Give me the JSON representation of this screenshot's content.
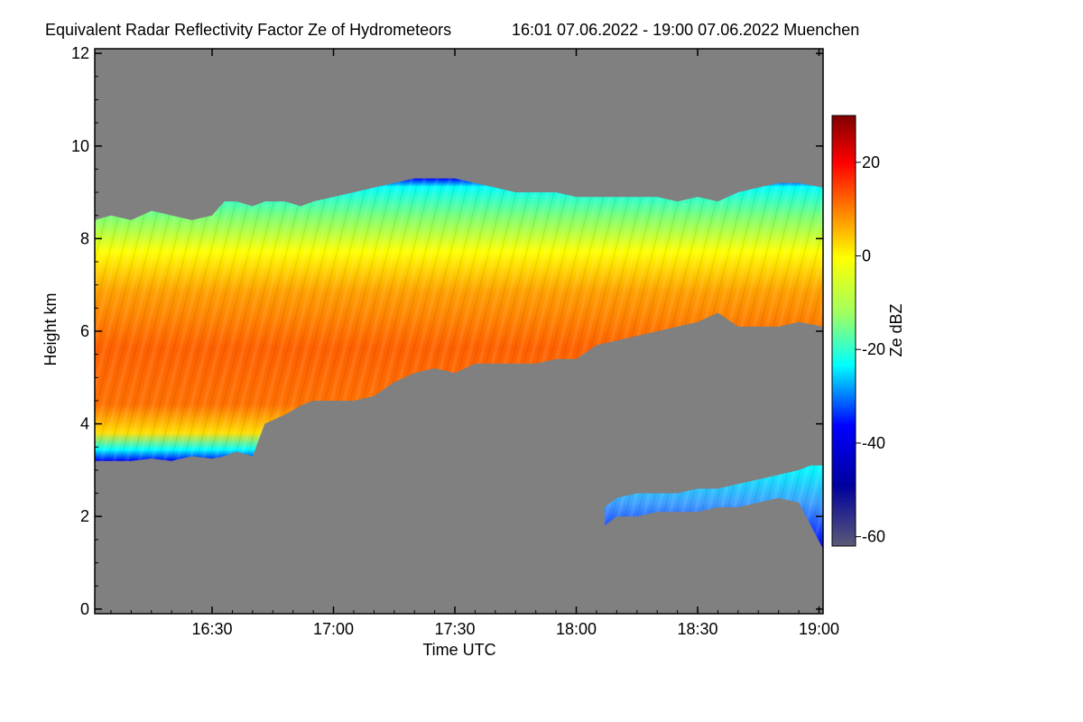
{
  "chart_data": {
    "type": "heatmap",
    "title": "Equivalent Radar Reflectivity Factor Ze of Hydrometeors",
    "subtitle": "16:01 07.06.2022 - 19:00 07.06.2022 Muenchen",
    "xlabel": "Time UTC",
    "ylabel": "Height km",
    "xlim_minutes_utc": [
      961,
      1141
    ],
    "x_ticks": [
      {
        "label": "16:30",
        "minutes": 990
      },
      {
        "label": "17:00",
        "minutes": 1020
      },
      {
        "label": "17:30",
        "minutes": 1050
      },
      {
        "label": "18:00",
        "minutes": 1080
      },
      {
        "label": "18:30",
        "minutes": 1110
      },
      {
        "label": "19:00",
        "minutes": 1140
      }
    ],
    "ylim": [
      -0.1,
      12.1
    ],
    "y_ticks": [
      0,
      2,
      4,
      6,
      8,
      10,
      12
    ],
    "colorbar": {
      "label": "Ze dBZ",
      "range": [
        -62,
        30
      ],
      "ticks": [
        -60,
        -40,
        -20,
        0,
        20
      ]
    },
    "no_echo_color": "#808080",
    "colormap": [
      "#5a5a78",
      "#00009e",
      "#0000ff",
      "#00ffff",
      "#a0ff60",
      "#ffff00",
      "#ff8000",
      "#ff0000",
      "#800000"
    ],
    "layers": [
      {
        "name": "main",
        "points": [
          {
            "t": 961,
            "top": 8.4,
            "bottom": 3.2
          },
          {
            "t": 965,
            "top": 8.5,
            "bottom": 3.2
          },
          {
            "t": 970,
            "top": 8.4,
            "bottom": 3.2
          },
          {
            "t": 975,
            "top": 8.6,
            "bottom": 3.25
          },
          {
            "t": 980,
            "top": 8.5,
            "bottom": 3.2
          },
          {
            "t": 985,
            "top": 8.4,
            "bottom": 3.3
          },
          {
            "t": 990,
            "top": 8.5,
            "bottom": 3.25
          },
          {
            "t": 993,
            "top": 8.8,
            "bottom": 3.3
          },
          {
            "t": 996,
            "top": 8.8,
            "bottom": 3.4
          },
          {
            "t": 1000,
            "top": 8.7,
            "bottom": 3.3
          },
          {
            "t": 1003,
            "top": 8.8,
            "bottom": 4.0
          },
          {
            "t": 1008,
            "top": 8.8,
            "bottom": 4.2
          },
          {
            "t": 1012,
            "top": 8.7,
            "bottom": 4.4
          },
          {
            "t": 1015,
            "top": 8.8,
            "bottom": 4.5
          },
          {
            "t": 1020,
            "top": 8.9,
            "bottom": 4.5
          },
          {
            "t": 1025,
            "top": 9.0,
            "bottom": 4.5
          },
          {
            "t": 1030,
            "top": 9.1,
            "bottom": 4.6
          },
          {
            "t": 1035,
            "top": 9.2,
            "bottom": 4.9
          },
          {
            "t": 1040,
            "top": 9.3,
            "bottom": 5.1
          },
          {
            "t": 1045,
            "top": 9.3,
            "bottom": 5.2
          },
          {
            "t": 1050,
            "top": 9.3,
            "bottom": 5.1
          },
          {
            "t": 1055,
            "top": 9.2,
            "bottom": 5.3
          },
          {
            "t": 1060,
            "top": 9.1,
            "bottom": 5.3
          },
          {
            "t": 1065,
            "top": 9.0,
            "bottom": 5.3
          },
          {
            "t": 1070,
            "top": 9.0,
            "bottom": 5.3
          },
          {
            "t": 1075,
            "top": 9.0,
            "bottom": 5.4
          },
          {
            "t": 1080,
            "top": 8.9,
            "bottom": 5.4
          },
          {
            "t": 1085,
            "top": 8.9,
            "bottom": 5.7
          },
          {
            "t": 1090,
            "top": 8.9,
            "bottom": 5.8
          },
          {
            "t": 1095,
            "top": 8.9,
            "bottom": 5.9
          },
          {
            "t": 1100,
            "top": 8.9,
            "bottom": 6.0
          },
          {
            "t": 1105,
            "top": 8.8,
            "bottom": 6.1
          },
          {
            "t": 1110,
            "top": 8.9,
            "bottom": 6.2
          },
          {
            "t": 1115,
            "top": 8.8,
            "bottom": 6.4
          },
          {
            "t": 1120,
            "top": 9.0,
            "bottom": 6.1
          },
          {
            "t": 1125,
            "top": 9.1,
            "bottom": 6.1
          },
          {
            "t": 1130,
            "top": 9.2,
            "bottom": 6.1
          },
          {
            "t": 1135,
            "top": 9.2,
            "bottom": 6.2
          },
          {
            "t": 1141,
            "top": 9.1,
            "bottom": 6.1
          }
        ]
      },
      {
        "name": "lower",
        "points": [
          {
            "t": 1087,
            "top": 2.2,
            "bottom": 1.8
          },
          {
            "t": 1090,
            "top": 2.4,
            "bottom": 2.0
          },
          {
            "t": 1095,
            "top": 2.5,
            "bottom": 2.0
          },
          {
            "t": 1100,
            "top": 2.5,
            "bottom": 2.1
          },
          {
            "t": 1105,
            "top": 2.5,
            "bottom": 2.1
          },
          {
            "t": 1110,
            "top": 2.6,
            "bottom": 2.1
          },
          {
            "t": 1115,
            "top": 2.6,
            "bottom": 2.2
          },
          {
            "t": 1120,
            "top": 2.7,
            "bottom": 2.2
          },
          {
            "t": 1125,
            "top": 2.8,
            "bottom": 2.3
          },
          {
            "t": 1130,
            "top": 2.9,
            "bottom": 2.4
          },
          {
            "t": 1135,
            "top": 3.0,
            "bottom": 2.3
          },
          {
            "t": 1138,
            "top": 3.1,
            "bottom": 1.8
          },
          {
            "t": 1141,
            "top": 3.1,
            "bottom": 1.3
          }
        ]
      }
    ]
  }
}
